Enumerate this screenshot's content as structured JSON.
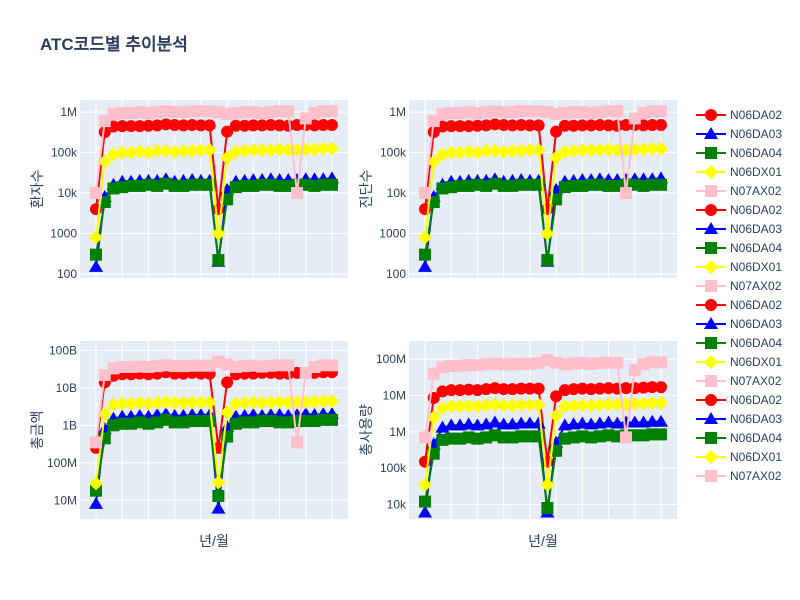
{
  "chart_data": {
    "type": "line",
    "title": "ATC코드별 추이분석",
    "log_y": true,
    "grid": true,
    "legend_position": "right",
    "series_colors": {
      "N06DA02": "#ff0000",
      "N06DA03": "#0000ff",
      "N06DA04": "#008000",
      "N06DX01": "#ffff00",
      "N07AX02": "#ffc0cb"
    },
    "series_symbols": {
      "N06DA02": "circle",
      "N06DA03": "triangle-up",
      "N06DA04": "square",
      "N06DX01": "diamond",
      "N07AX02": "square"
    },
    "legend": [
      "N06DA02",
      "N06DA03",
      "N06DA04",
      "N06DX01",
      "N07AX02",
      "N06DA02",
      "N06DA03",
      "N06DA04",
      "N06DX01",
      "N07AX02",
      "N06DA02",
      "N06DA03",
      "N06DA04",
      "N06DX01",
      "N07AX02",
      "N06DA02",
      "N06DA03",
      "N06DA04",
      "N06DX01",
      "N07AX02"
    ],
    "panels": [
      {
        "xlabel": "",
        "ylabel": "환자수",
        "ylim_log10": [
          1.9,
          6.3
        ],
        "yticks": [
          {
            "v": 100,
            "label": "100"
          },
          {
            "v": 1000,
            "label": "1000"
          },
          {
            "v": 10000,
            "label": "10k"
          },
          {
            "v": 100000,
            "label": "100k"
          },
          {
            "v": 1000000,
            "label": "1M"
          }
        ],
        "series": [
          {
            "name": "N06DA02",
            "values": [
              4000,
              320000,
              440000,
              450000,
              450000,
              450000,
              460000,
              470000,
              500000,
              480000,
              470000,
              480000,
              470000,
              470000,
              4000,
              330000,
              460000,
              460000,
              470000,
              470000,
              480000,
              470000,
              460000,
              480000,
              480000,
              470000,
              480000,
              480000
            ]
          },
          {
            "name": "N06DA03",
            "values": [
              150,
              8000,
              16000,
              19000,
              19000,
              20000,
              20000,
              20000,
              22000,
              19000,
              20000,
              21000,
              20000,
              20000,
              200,
              12000,
              19000,
              20000,
              21000,
              21000,
              22000,
              21000,
              21000,
              21000,
              22000,
              22000,
              22000,
              23000
            ]
          },
          {
            "name": "N06DA04",
            "values": [
              300,
              6000,
              13000,
              14000,
              15000,
              15000,
              16000,
              15000,
              17000,
              15000,
              15000,
              16000,
              16000,
              16000,
              220,
              7000,
              14000,
              15000,
              15000,
              16000,
              16000,
              15000,
              15000,
              16000,
              16000,
              15000,
              16000,
              16000
            ]
          },
          {
            "name": "N06DX01",
            "values": [
              800,
              60000,
              90000,
              100000,
              100000,
              105000,
              100000,
              110000,
              110000,
              105000,
              110000,
              110000,
              115000,
              115000,
              1000,
              75000,
              105000,
              110000,
              115000,
              115000,
              115000,
              120000,
              115000,
              115000,
              120000,
              120000,
              125000,
              125000
            ]
          },
          {
            "name": "N07AX02",
            "values": [
              10000,
              600000,
              900000,
              950000,
              950000,
              1000000,
              950000,
              1000000,
              1050000,
              1000000,
              1000000,
              1050000,
              1050000,
              1050000,
              1000000,
              900000,
              950000,
              1000000,
              1000000,
              950000,
              1000000,
              1050000,
              1050000,
              10000,
              700000,
              950000,
              1050000,
              1050000
            ]
          }
        ]
      },
      {
        "xlabel": "",
        "ylabel": "진단수",
        "ylim_log10": [
          1.9,
          6.3
        ],
        "yticks": [
          {
            "v": 100,
            "label": "100"
          },
          {
            "v": 1000,
            "label": "1000"
          },
          {
            "v": 10000,
            "label": "10k"
          },
          {
            "v": 100000,
            "label": "100k"
          },
          {
            "v": 1000000,
            "label": "1M"
          }
        ],
        "series": [
          {
            "name": "N06DA02",
            "values": [
              4000,
              320000,
              440000,
              450000,
              450000,
              450000,
              460000,
              470000,
              500000,
              480000,
              470000,
              480000,
              470000,
              470000,
              4000,
              330000,
              460000,
              460000,
              470000,
              470000,
              480000,
              470000,
              460000,
              480000,
              480000,
              470000,
              480000,
              480000
            ]
          },
          {
            "name": "N06DA03",
            "values": [
              150,
              8000,
              16000,
              19000,
              19000,
              20000,
              20000,
              20000,
              22000,
              19000,
              20000,
              21000,
              20000,
              20000,
              200,
              12000,
              19000,
              20000,
              21000,
              21000,
              22000,
              21000,
              21000,
              21000,
              22000,
              22000,
              22000,
              23000
            ]
          },
          {
            "name": "N06DA04",
            "values": [
              300,
              6000,
              13000,
              14000,
              15000,
              15000,
              16000,
              15000,
              17000,
              15000,
              15000,
              16000,
              16000,
              16000,
              220,
              7000,
              14000,
              15000,
              15000,
              16000,
              16000,
              15000,
              15000,
              16000,
              16000,
              15000,
              16000,
              16000
            ]
          },
          {
            "name": "N06DX01",
            "values": [
              800,
              60000,
              90000,
              100000,
              100000,
              105000,
              100000,
              110000,
              110000,
              105000,
              110000,
              110000,
              115000,
              115000,
              1000,
              75000,
              105000,
              110000,
              115000,
              115000,
              115000,
              120000,
              115000,
              115000,
              120000,
              120000,
              125000,
              125000
            ]
          },
          {
            "name": "N07AX02",
            "values": [
              10000,
              600000,
              900000,
              950000,
              950000,
              1000000,
              950000,
              1000000,
              1050000,
              1000000,
              1000000,
              1050000,
              1050000,
              1050000,
              1000000,
              900000,
              950000,
              1000000,
              1000000,
              950000,
              1000000,
              1050000,
              1050000,
              10000,
              700000,
              950000,
              1050000,
              1050000
            ]
          }
        ]
      },
      {
        "xlabel": "년/월",
        "ylabel": "총금액",
        "ylim_log10": [
          6.5,
          11.25
        ],
        "yticks": [
          {
            "v": 10000000,
            "label": "10M"
          },
          {
            "v": 100000000,
            "label": "100M"
          },
          {
            "v": 1000000000,
            "label": "1B"
          },
          {
            "v": 10000000000,
            "label": "10B"
          },
          {
            "v": 100000000000,
            "label": "100B"
          }
        ],
        "series": [
          {
            "name": "N06DA02",
            "values": [
              250000000,
              14000000000,
              21000000000,
              23000000000,
              23000000000,
              24000000000,
              23000000000,
              24000000000,
              26000000000,
              24000000000,
              24000000000,
              25000000000,
              24000000000,
              24000000000,
              250000000,
              14000000000,
              23000000000,
              24000000000,
              24000000000,
              25000000000,
              25000000000,
              24000000000,
              24000000000,
              25000000000,
              25000000000,
              25000000000,
              26000000000,
              26000000000
            ]
          },
          {
            "name": "N06DA03",
            "values": [
              8000000,
              800000000,
              1500000000,
              1700000000,
              1700000000,
              1800000000,
              1700000000,
              1900000000,
              2000000000,
              1800000000,
              1800000000,
              1900000000,
              1900000000,
              1900000000,
              6000000,
              900000000,
              1700000000,
              1800000000,
              1900000000,
              1800000000,
              1900000000,
              1900000000,
              1800000000,
              1900000000,
              2000000000,
              1900000000,
              2000000000,
              2000000000
            ]
          },
          {
            "name": "N06DA04",
            "values": [
              18000000,
              450000000,
              1000000000,
              1100000000,
              1100000000,
              1200000000,
              1100000000,
              1200000000,
              1400000000,
              1200000000,
              1200000000,
              1300000000,
              1300000000,
              1300000000,
              13000000,
              500000000,
              1100000000,
              1200000000,
              1200000000,
              1300000000,
              1300000000,
              1200000000,
              1200000000,
              1300000000,
              1300000000,
              1300000000,
              1400000000,
              1400000000
            ]
          },
          {
            "name": "N06DX01",
            "values": [
              28000000,
              2000000000,
              3500000000,
              3800000000,
              3800000000,
              4000000000,
              3800000000,
              4000000000,
              4200000000,
              4000000000,
              4000000000,
              4100000000,
              4100000000,
              4100000000,
              30000000,
              2200000000,
              3800000000,
              4000000000,
              4100000000,
              4000000000,
              4100000000,
              4200000000,
              4100000000,
              4200000000,
              4200000000,
              4300000000,
              4400000000,
              4400000000
            ]
          },
          {
            "name": "N07AX02",
            "values": [
              350000000,
              22000000000,
              33000000000,
              36000000000,
              36000000000,
              37000000000,
              36000000000,
              38000000000,
              40000000000,
              38000000000,
              38000000000,
              39000000000,
              39000000000,
              39000000000,
              50000000000,
              42000000000,
              36000000000,
              38000000000,
              39000000000,
              37000000000,
              39000000000,
              40000000000,
              40000000000,
              350000000,
              25000000000,
              36000000000,
              40000000000,
              40000000000
            ]
          }
        ]
      },
      {
        "xlabel": "년/월",
        "ylabel": "총사용량",
        "ylim_log10": [
          3.6,
          8.5
        ],
        "yticks": [
          {
            "v": 10000,
            "label": "10k"
          },
          {
            "v": 100000,
            "label": "100k"
          },
          {
            "v": 1000000,
            "label": "1M"
          },
          {
            "v": 10000000,
            "label": "10M"
          },
          {
            "v": 100000000,
            "label": "100M"
          }
        ],
        "series": [
          {
            "name": "N06DA02",
            "values": [
              150000,
              8500000,
              13000000,
              14000000,
              14000000,
              14500000,
              14000000,
              15000000,
              16000000,
              15000000,
              15000000,
              15500000,
              15500000,
              15500000,
              150000,
              9500000,
              14000000,
              15000000,
              15500000,
              15000000,
              15500000,
              16000000,
              15500000,
              16000000,
              16000000,
              16500000,
              17000000,
              17000000
            ]
          },
          {
            "name": "N06DA03",
            "values": [
              6000,
              450000,
              1300000,
              1500000,
              1500000,
              1600000,
              1500000,
              1600000,
              1800000,
              1600000,
              1600000,
              1700000,
              1700000,
              1700000,
              6000,
              500000,
              1500000,
              1600000,
              1700000,
              1600000,
              1700000,
              1800000,
              1700000,
              1800000,
              1800000,
              1800000,
              1900000,
              1900000
            ]
          },
          {
            "name": "N06DA04",
            "values": [
              12000,
              250000,
              600000,
              650000,
              650000,
              700000,
              650000,
              700000,
              800000,
              700000,
              700000,
              750000,
              750000,
              750000,
              8000,
              300000,
              650000,
              700000,
              750000,
              700000,
              750000,
              800000,
              750000,
              800000,
              800000,
              800000,
              850000,
              850000
            ]
          },
          {
            "name": "N06DX01",
            "values": [
              35000,
              2500000,
              4500000,
              5000000,
              5000000,
              5200000,
              5000000,
              5400000,
              5600000,
              5300000,
              5300000,
              5500000,
              5500000,
              5500000,
              35000,
              2800000,
              5000000,
              5200000,
              5400000,
              5300000,
              5500000,
              5700000,
              5600000,
              5800000,
              5900000,
              6000000,
              6200000,
              6200000
            ]
          },
          {
            "name": "N07AX02",
            "values": [
              700000,
              40000000,
              60000000,
              65000000,
              66000000,
              70000000,
              68000000,
              72000000,
              75000000,
              72000000,
              72000000,
              74000000,
              75000000,
              78000000,
              95000000,
              80000000,
              72000000,
              76000000,
              78000000,
              74000000,
              78000000,
              80000000,
              80000000,
              700000,
              50000000,
              72000000,
              82000000,
              82000000
            ]
          }
        ]
      }
    ]
  }
}
